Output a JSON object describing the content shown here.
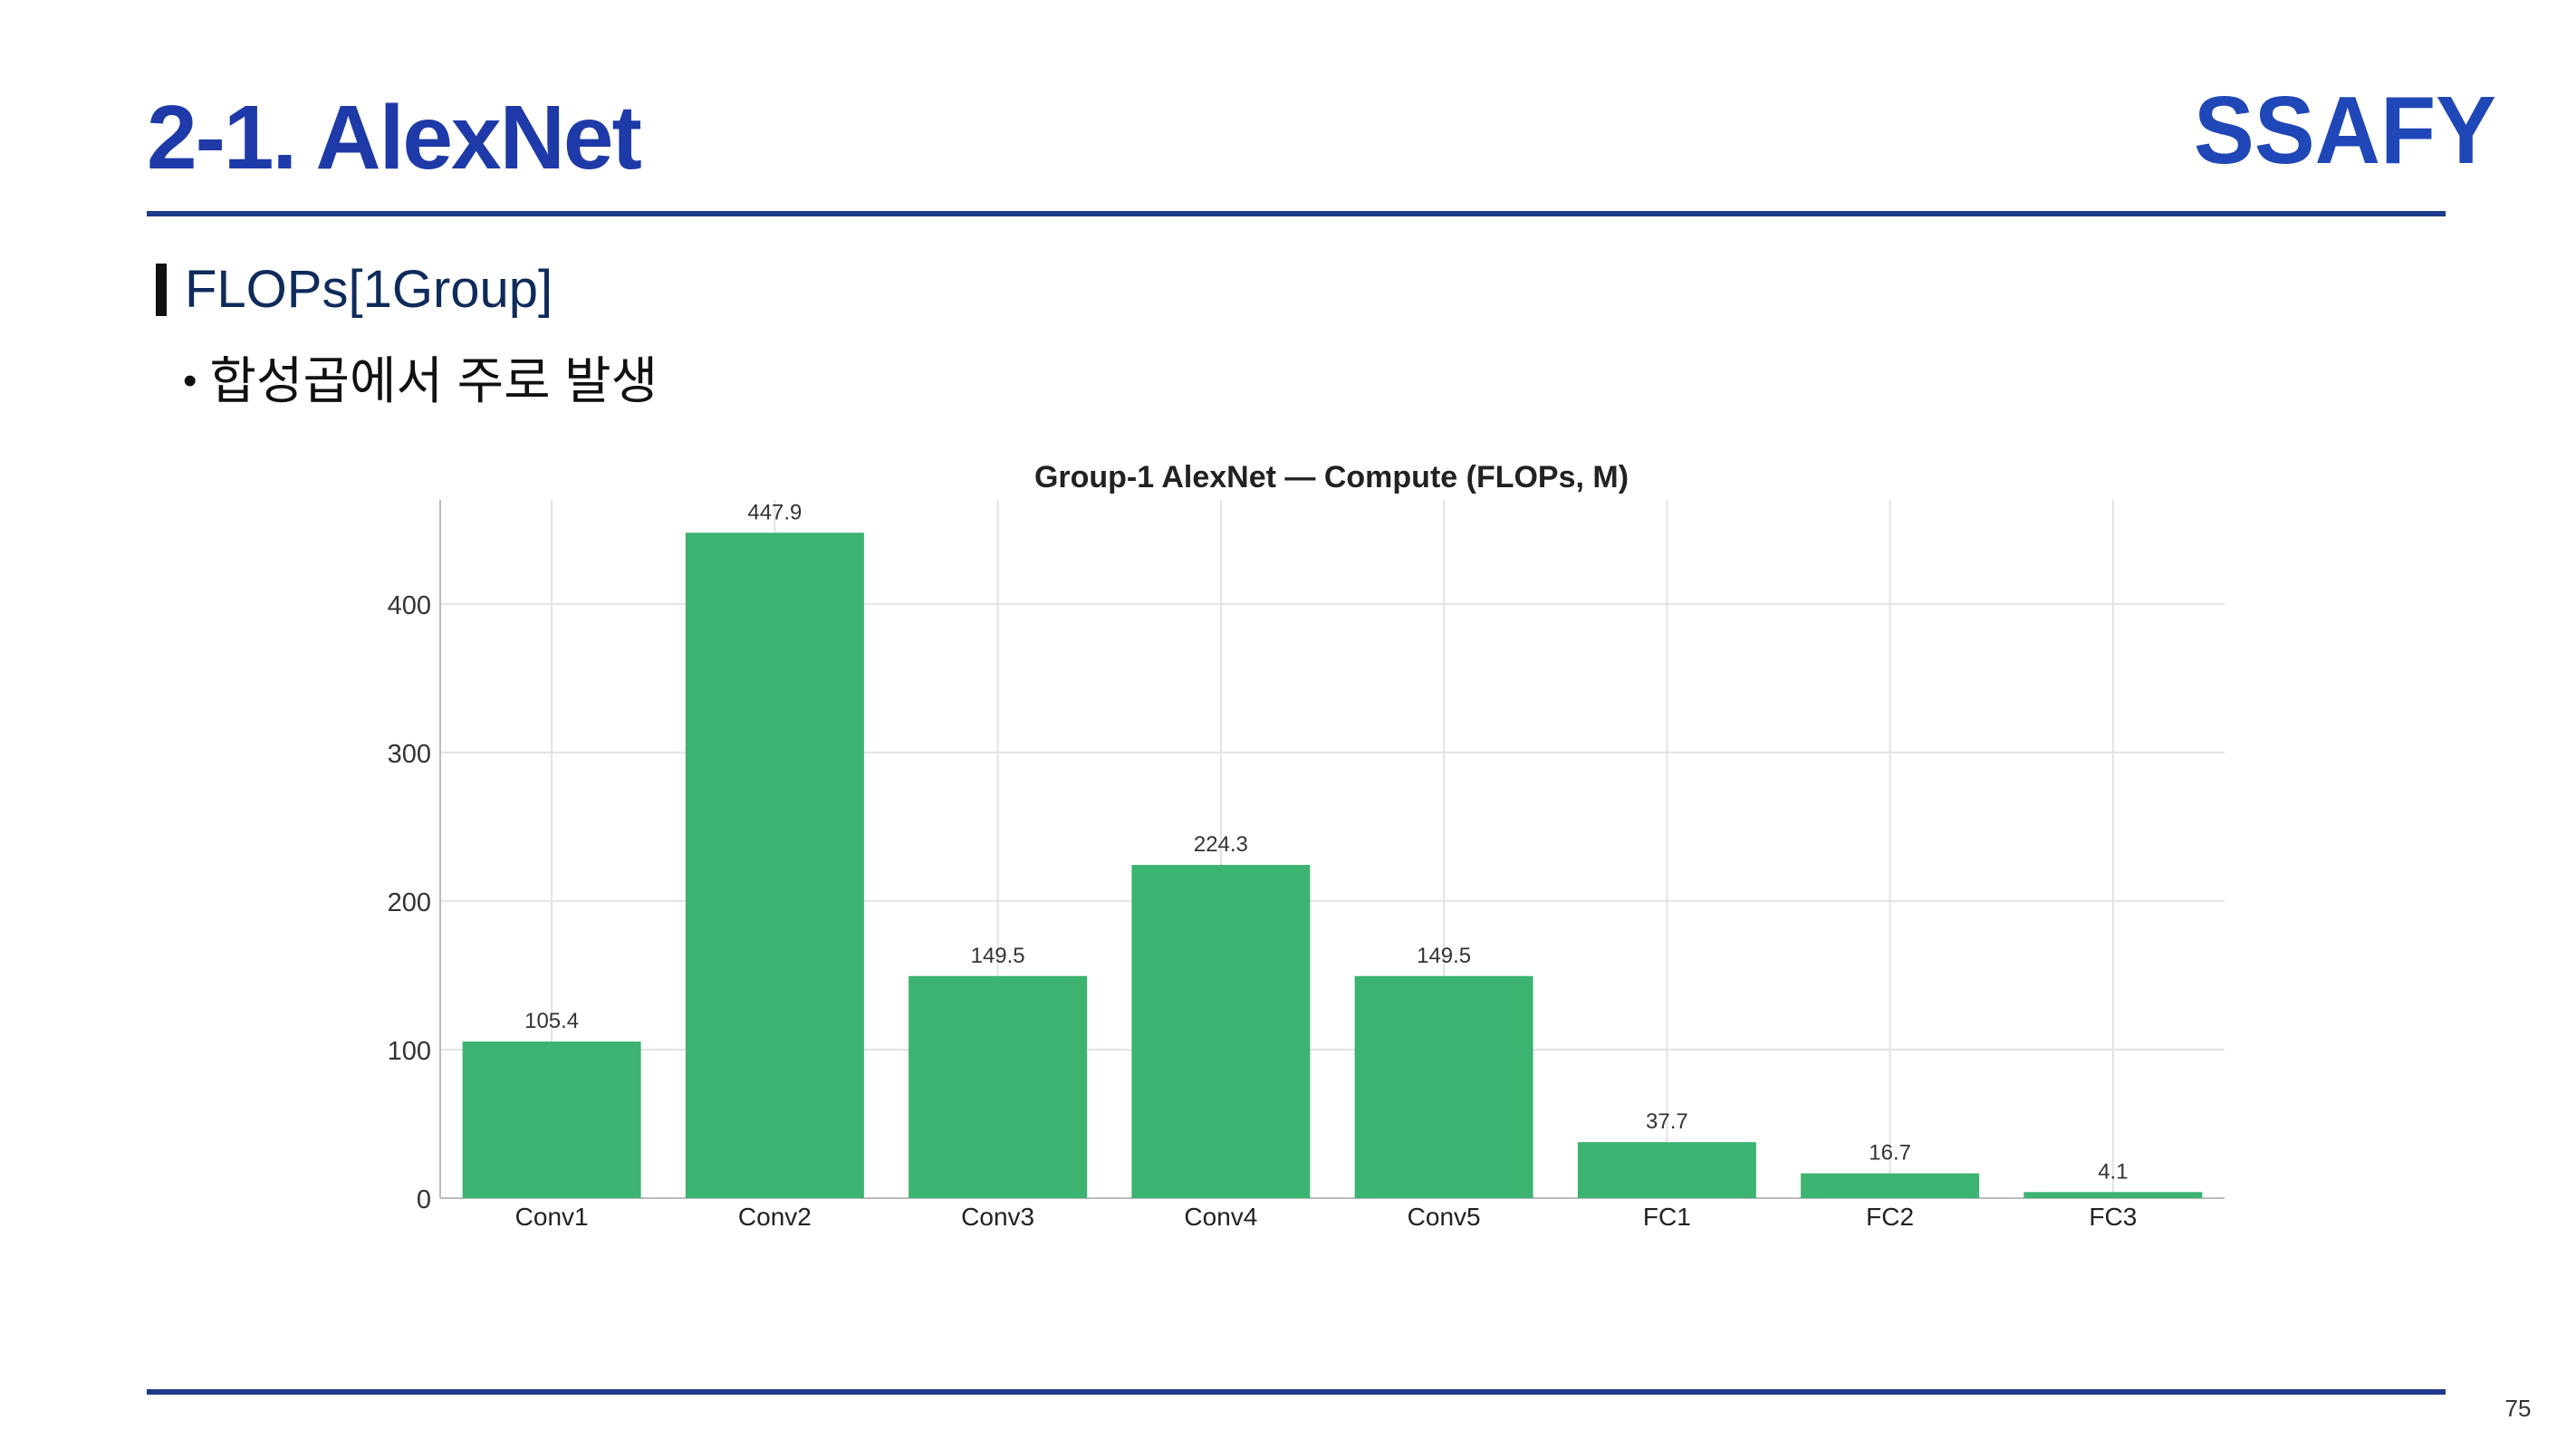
{
  "slide": {
    "title": "2-1. AlexNet",
    "section_title": "FLOPs[1Group]",
    "bullet": "합성곱에서 주로 발생",
    "page_number": "75",
    "logo_text": "SSAFY",
    "colors": {
      "title": "#1e3aa8",
      "rule": "#1e3a8a",
      "logo": "#1f47b8"
    }
  },
  "chart_data": {
    "type": "bar",
    "title": "Group-1 AlexNet — Compute (FLOPs, M)",
    "xlabel": "",
    "ylabel": "",
    "categories": [
      "Conv1",
      "Conv2",
      "Conv3",
      "Conv4",
      "Conv5",
      "FC1",
      "FC2",
      "FC3"
    ],
    "values": [
      105.4,
      447.9,
      149.5,
      224.3,
      149.5,
      37.7,
      16.7,
      4.1
    ],
    "data_labels": [
      "105.4",
      "447.9",
      "149.5",
      "224.3",
      "149.5",
      "37.7",
      "16.7",
      "4.1"
    ],
    "yticks": [
      0,
      100,
      200,
      300,
      400
    ],
    "ylim": [
      0,
      470
    ],
    "grid": true,
    "bar_color": "#3cb371"
  }
}
